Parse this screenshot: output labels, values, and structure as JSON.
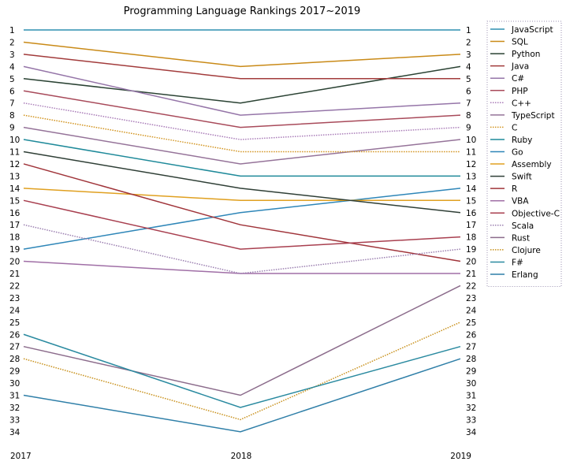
{
  "chart_data": {
    "type": "line",
    "title": "Programming Language Rankings 2017~2019",
    "x": [
      "2017",
      "2018",
      "2019"
    ],
    "y_ticks": [
      1,
      2,
      3,
      4,
      5,
      6,
      7,
      8,
      9,
      10,
      11,
      12,
      13,
      14,
      15,
      16,
      17,
      18,
      19,
      20,
      21,
      22,
      23,
      24,
      25,
      26,
      27,
      28,
      29,
      30,
      31,
      32,
      33,
      34
    ],
    "y_inverted": true,
    "legend_position": "right",
    "series": [
      {
        "name": "JavaScript",
        "values": [
          1,
          1,
          1
        ],
        "color": "#2f8fb0",
        "style": "solid"
      },
      {
        "name": "SQL",
        "values": [
          2,
          4,
          3
        ],
        "color": "#c98a17",
        "style": "solid"
      },
      {
        "name": "Python",
        "values": [
          5,
          7,
          4
        ],
        "color": "#2a4233",
        "style": "solid"
      },
      {
        "name": "Java",
        "values": [
          3,
          5,
          5
        ],
        "color": "#a23b3b",
        "style": "solid"
      },
      {
        "name": "C#",
        "values": [
          4,
          8,
          7
        ],
        "color": "#9575a8",
        "style": "solid"
      },
      {
        "name": "PHP",
        "values": [
          6,
          9,
          8
        ],
        "color": "#a84a5a",
        "style": "solid"
      },
      {
        "name": "C++",
        "values": [
          7,
          10,
          9
        ],
        "color": "#a97cb8",
        "style": "dotted"
      },
      {
        "name": "TypeScript",
        "values": [
          9,
          12,
          10
        ],
        "color": "#957399",
        "style": "solid"
      },
      {
        "name": "C",
        "values": [
          8,
          11,
          11
        ],
        "color": "#d2941f",
        "style": "dotted"
      },
      {
        "name": "Ruby",
        "values": [
          10,
          13,
          13
        ],
        "color": "#1f8a9a",
        "style": "solid"
      },
      {
        "name": "Go",
        "values": [
          19,
          16,
          14
        ],
        "color": "#2e86b8",
        "style": "solid"
      },
      {
        "name": "Assembly",
        "values": [
          14,
          15,
          15
        ],
        "color": "#e0a020",
        "style": "solid"
      },
      {
        "name": "Swift",
        "values": [
          11,
          14,
          16
        ],
        "color": "#2f3f36",
        "style": "solid"
      },
      {
        "name": "R",
        "values": [
          12,
          17,
          20
        ],
        "color": "#a0343a",
        "style": "solid"
      },
      {
        "name": "VBA",
        "values": [
          20,
          21,
          21
        ],
        "color": "#a06fa6",
        "style": "solid"
      },
      {
        "name": "Objective-C",
        "values": [
          15,
          19,
          18
        ],
        "color": "#a83f4f",
        "style": "solid"
      },
      {
        "name": "Scala",
        "values": [
          17,
          21,
          19
        ],
        "color": "#9b7fb0",
        "style": "dotted"
      },
      {
        "name": "Rust",
        "values": [
          27,
          31,
          22
        ],
        "color": "#8c6c8c",
        "style": "solid"
      },
      {
        "name": "Clojure",
        "values": [
          28,
          33,
          25
        ],
        "color": "#c8901a",
        "style": "dotted"
      },
      {
        "name": "F#",
        "values": [
          26,
          32,
          27
        ],
        "color": "#2a8aa0",
        "style": "solid"
      },
      {
        "name": "Erlang",
        "values": [
          31,
          34,
          28
        ],
        "color": "#2f7fa8",
        "style": "solid"
      }
    ]
  }
}
